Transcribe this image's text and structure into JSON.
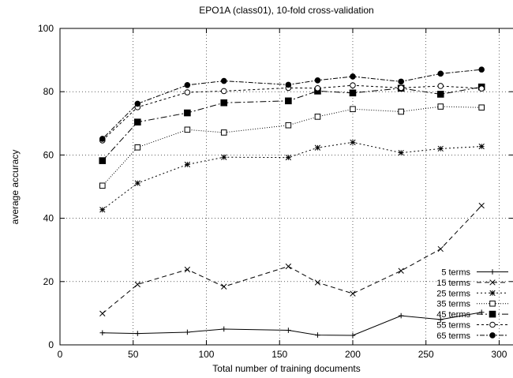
{
  "chart_data": {
    "type": "line",
    "title": "EPO1A (class01), 10-fold cross-validation",
    "xlabel": "Total number of training documents",
    "ylabel": "average accuracy",
    "xlim": [
      0,
      310
    ],
    "ylim": [
      0,
      100
    ],
    "xticks": [
      "0",
      "50",
      "100",
      "150",
      "200",
      "250",
      "300"
    ],
    "yticks": [
      "0",
      "20",
      "40",
      "60",
      "80",
      "100"
    ],
    "grid": true,
    "legend_position": "bottom-right",
    "x": [
      29,
      53,
      87,
      112,
      156,
      176,
      200,
      233,
      260,
      288
    ],
    "series": [
      {
        "name": "5 terms",
        "marker": "plus",
        "dash": "",
        "values": [
          3.8,
          3.6,
          4.0,
          5.0,
          4.6,
          3.1,
          3.0,
          9.2,
          8.0,
          10.3
        ]
      },
      {
        "name": "15 terms",
        "marker": "cross",
        "dash": "6,4",
        "values": [
          9.9,
          19.1,
          23.8,
          18.4,
          24.8,
          19.7,
          16.2,
          23.4,
          30.3,
          44.0
        ]
      },
      {
        "name": "25 terms",
        "marker": "star",
        "dash": "2,3",
        "values": [
          42.7,
          51.1,
          57.0,
          59.3,
          59.2,
          62.3,
          64.0,
          60.7,
          62.0,
          62.7
        ]
      },
      {
        "name": "35 terms",
        "marker": "square",
        "dash": "1,2",
        "values": [
          50.3,
          62.4,
          68.0,
          67.1,
          69.4,
          72.1,
          74.5,
          73.7,
          75.3,
          75.0
        ]
      },
      {
        "name": "45 terms",
        "marker": "filled-square",
        "dash": "8,3,2,3",
        "values": [
          58.2,
          70.4,
          73.3,
          76.5,
          77.1,
          80.2,
          79.6,
          81.1,
          79.2,
          81.5
        ]
      },
      {
        "name": "55 terms",
        "marker": "circle",
        "dash": "3,3",
        "values": [
          64.6,
          75.1,
          79.8,
          80.2,
          81.2,
          81.1,
          82.0,
          81.2,
          81.8,
          81.0
        ]
      },
      {
        "name": "65 terms",
        "marker": "filled-circle",
        "dash": "2,2,6,2",
        "values": [
          65.1,
          76.2,
          82.1,
          83.4,
          82.2,
          83.6,
          84.8,
          83.2,
          85.7,
          87.0
        ]
      }
    ]
  }
}
